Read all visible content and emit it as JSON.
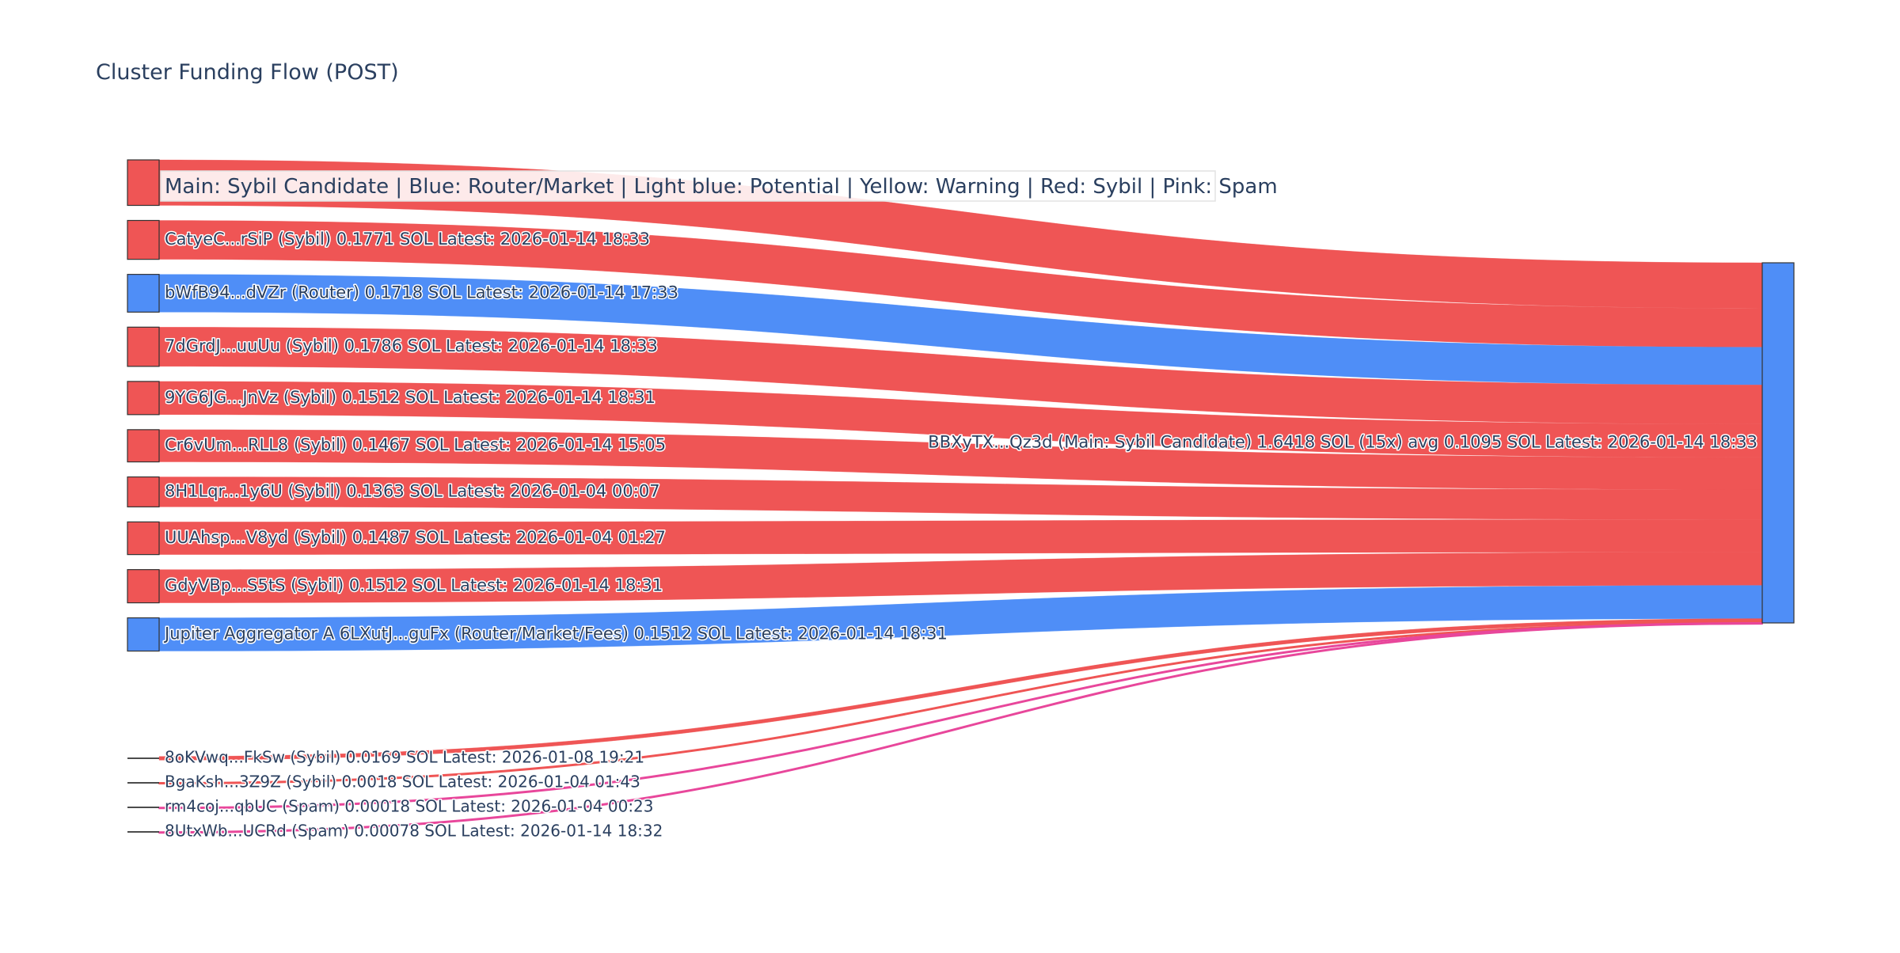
{
  "chart_data": {
    "type": "sankey",
    "title": "Cluster Funding Flow (POST)",
    "annotation": "Main: Sybil Candidate  |  Blue: Router/Market | Light blue: Potential | Yellow: Warning | Red: Sybil | Pink: Spam",
    "unit": "SOL",
    "colors": {
      "sybil": "#ef5555",
      "router": "#4f8ef7",
      "spam": "#e8479b",
      "node_border": "#333333",
      "text": "#2a3f5f"
    },
    "target": {
      "label": "BBXyTX...Qz3d (Main: Sybil Candidate) 1.6418 SOL (15x) avg 0.1095 SOL Latest: 2026-01-14 18:33",
      "category": "router"
    },
    "sources": [
      {
        "label": "",
        "value": 0.2072,
        "category": "sybil"
      },
      {
        "label": "CatyeC...rSiP (Sybil) 0.1771 SOL Latest: 2026-01-14 18:33",
        "value": 0.1771,
        "category": "sybil"
      },
      {
        "label": "bWfB94...dVZr (Router) 0.1718 SOL Latest: 2026-01-14 17:33",
        "value": 0.1718,
        "category": "router"
      },
      {
        "label": "7dGrdJ...uuUu (Sybil) 0.1786 SOL Latest: 2026-01-14 18:33",
        "value": 0.1786,
        "category": "sybil"
      },
      {
        "label": "9YG6JG...JnVz (Sybil) 0.1512 SOL Latest: 2026-01-14 18:31",
        "value": 0.1512,
        "category": "sybil"
      },
      {
        "label": "Cr6vUm...RLL8 (Sybil) 0.1467 SOL Latest: 2026-01-14 15:05",
        "value": 0.1467,
        "category": "sybil"
      },
      {
        "label": "8H1Lqr...1y6U (Sybil) 0.1363 SOL Latest: 2026-01-04 00:07",
        "value": 0.1363,
        "category": "sybil"
      },
      {
        "label": "UUAhsp...V8yd (Sybil) 0.1487 SOL Latest: 2026-01-04 01:27",
        "value": 0.1487,
        "category": "sybil"
      },
      {
        "label": "GdyVBp...S5tS (Sybil) 0.1512 SOL Latest: 2026-01-14 18:31",
        "value": 0.1512,
        "category": "sybil"
      },
      {
        "label": "Jupiter Aggregator A 6LXutJ...guFx (Router/Market/Fees) 0.1512 SOL Latest: 2026-01-14 18:31",
        "value": 0.1512,
        "category": "router"
      },
      {
        "label": "8oKVwq...FkSw (Sybil) 0.0169 SOL Latest: 2026-01-08 19:21",
        "value": 0.0169,
        "category": "sybil"
      },
      {
        "label": "BgaKsh...3Z9Z (Sybil) 0.0018 SOL Latest: 2026-01-04 01:43",
        "value": 0.0018,
        "category": "sybil"
      },
      {
        "label": "rm4coj...qbUC (Spam) 0.00018 SOL Latest: 2026-01-04 00:23",
        "value": 0.00018,
        "category": "spam"
      },
      {
        "label": "8UtxWb...UCRd (Spam) 0.00078 SOL Latest: 2026-01-14 18:32",
        "value": 0.00078,
        "category": "spam"
      }
    ]
  }
}
